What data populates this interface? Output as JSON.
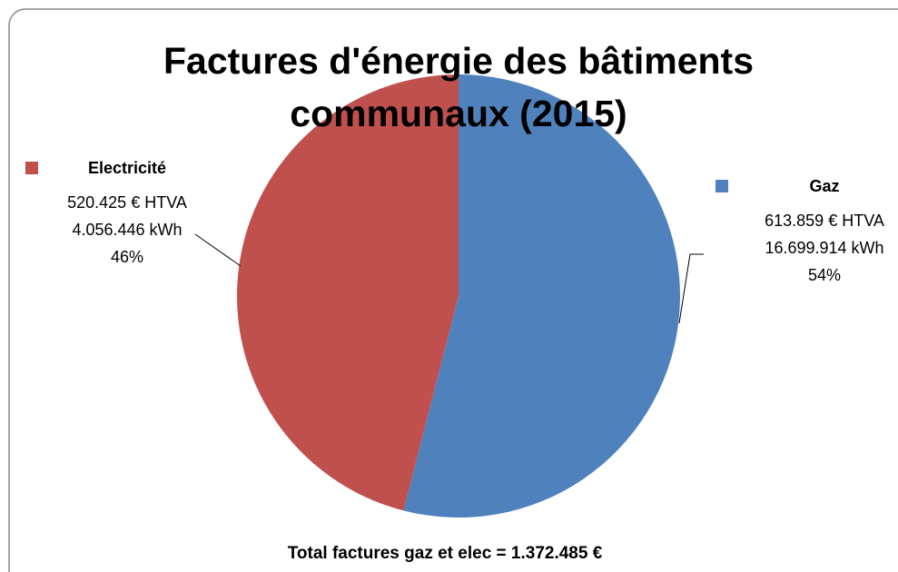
{
  "chart_data": {
    "type": "pie",
    "title_lines": [
      "Factures d'énergie des bâtiments",
      "communaux (2015)"
    ],
    "categories": [
      "Gaz",
      "Electricité"
    ],
    "values": [
      54,
      46
    ],
    "value_labels": [
      "54%",
      "46%"
    ],
    "label_details": [
      [
        "613.859 € HTVA",
        "16.699.914 kWh"
      ],
      [
        "520.425 € HTVA",
        "4.056.446 kWh"
      ]
    ],
    "colors": [
      "#4f81bd",
      "#c0504d"
    ],
    "footnote": "Total factures gaz et elec = 1.372.485 €"
  }
}
